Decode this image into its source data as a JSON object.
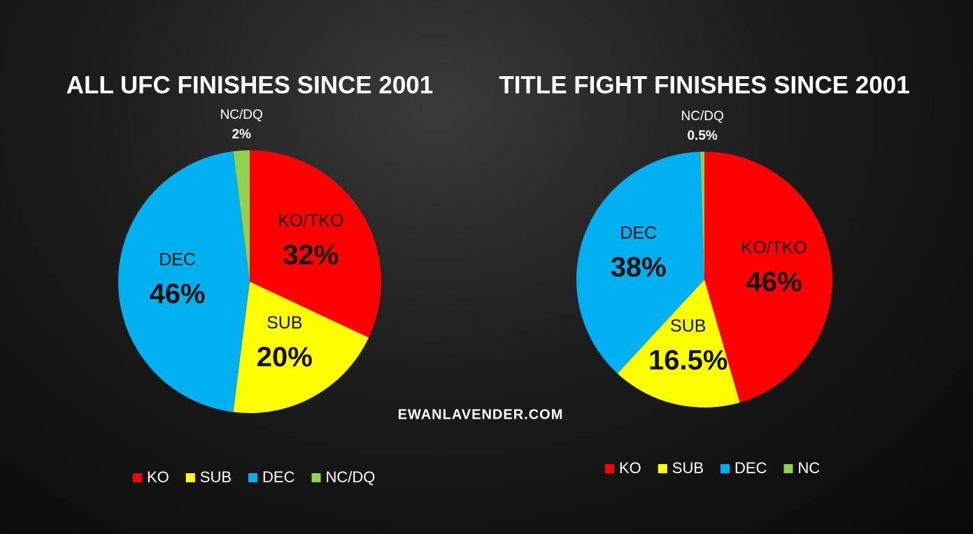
{
  "chart_data": [
    {
      "type": "pie",
      "title": "ALL UFC FINISHES SINCE 2001",
      "categories": [
        "KO/TKO",
        "SUB",
        "DEC",
        "NC/DQ"
      ],
      "values": [
        32,
        20,
        46,
        2
      ],
      "value_labels": [
        "32%",
        "20%",
        "46%",
        "2%"
      ],
      "colors": [
        "#ff0000",
        "#ffff00",
        "#00b0f0",
        "#92d050"
      ],
      "legend": [
        "KO",
        "SUB",
        "DEC",
        "NC/DQ"
      ]
    },
    {
      "type": "pie",
      "title": "TITLE FIGHT FINISHES SINCE 2001",
      "categories": [
        "KO/TKO",
        "SUB",
        "DEC",
        "NC/DQ"
      ],
      "values": [
        46,
        16.5,
        38,
        0.5
      ],
      "value_labels": [
        "46%",
        "16.5%",
        "38%",
        "0.5%"
      ],
      "colors": [
        "#ff0000",
        "#ffff00",
        "#00b0f0",
        "#92d050"
      ],
      "legend": [
        "KO",
        "SUB",
        "DEC",
        "NC"
      ]
    }
  ],
  "credit": "EWANLAVENDER.COM"
}
